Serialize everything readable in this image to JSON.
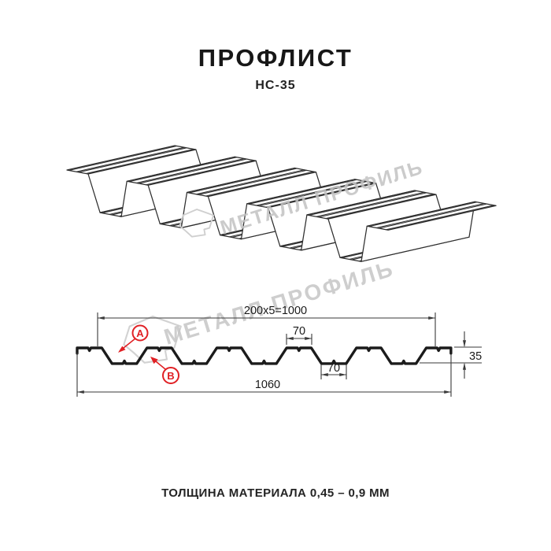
{
  "header": {
    "title": "ПРОФЛИСТ",
    "subtitle": "НС-35"
  },
  "watermark": {
    "brand": "МЕТАЛЛ ПРОФИЛЬ"
  },
  "dimensions": {
    "working_width": "200x5=1000",
    "top_flange": "70",
    "bottom_flange": "70",
    "overall_width": "1060",
    "height": "35"
  },
  "callouts": {
    "a": "A",
    "b": "B"
  },
  "profile": {
    "rib_count": 6,
    "top_flange_mm": 70,
    "bottom_flange_mm": 70,
    "height_mm": 35,
    "overall_width_mm": 1060
  },
  "footer": {
    "thickness_note": "ТОЛЩИНА МАТЕРИАЛА 0,45 – 0,9 ММ"
  },
  "colors": {
    "accent": "#e02024",
    "line": "#1b1b1b",
    "line_3d": "#2e2e2e",
    "dim_line": "#3a3a3a",
    "watermark": "#c6c6c6"
  }
}
